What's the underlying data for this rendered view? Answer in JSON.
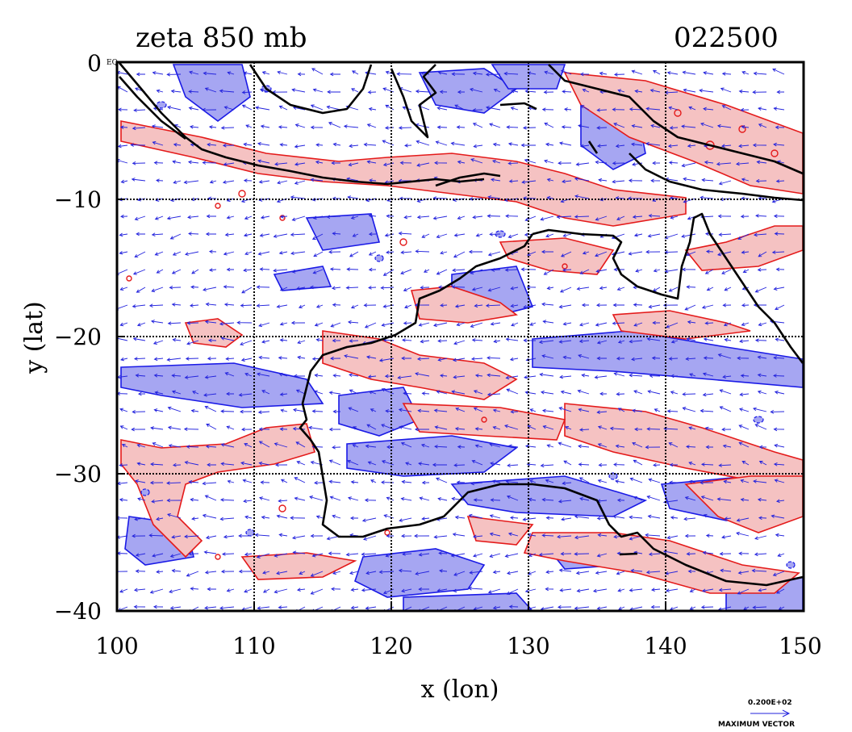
{
  "title_left": "zeta 850 mb",
  "title_right": "022500",
  "corner_label": "EQ",
  "xlabel": "x (lon)",
  "ylabel": "y (lat)",
  "x_ticks": [
    "100",
    "110",
    "120",
    "130",
    "140",
    "150"
  ],
  "y_ticks": [
    "0",
    "−10",
    "−20",
    "−30",
    "−40"
  ],
  "legend": {
    "value": "0.200E+02",
    "label": "MAXIMUM VECTOR"
  },
  "colors": {
    "positive_fill": "#f5c2c2",
    "positive_line": "#e41a1a",
    "negative_fill": "#a6a6f2",
    "negative_line": "#1a1ae6",
    "vector": "#2222dd",
    "coast": "#000000"
  },
  "map": {
    "lon_range": [
      100,
      150
    ],
    "lat_range": [
      -40,
      0
    ],
    "grid_lon": [
      110,
      120,
      130,
      140
    ],
    "grid_lat": [
      -10,
      -20,
      -30
    ],
    "layers": [
      "vorticity contours (red positive, blue negative)",
      "wind vectors",
      "coastlines"
    ]
  }
}
